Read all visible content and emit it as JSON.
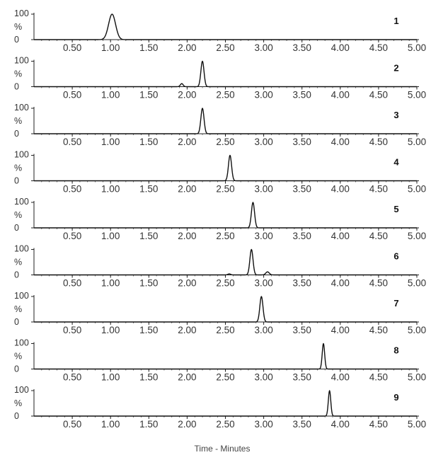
{
  "chart_data": {
    "type": "line",
    "xlabel": "Time - Minutes",
    "xlim": [
      0.0,
      5.0
    ],
    "ylim": [
      0,
      100
    ],
    "y_tick_labels": [
      "100",
      "%",
      "0"
    ],
    "x_ticks": [
      "0.50",
      "1.00",
      "1.50",
      "2.00",
      "2.50",
      "3.00",
      "3.50",
      "4.00",
      "4.50",
      "5.00"
    ],
    "panels": [
      {
        "label": "1",
        "peaks": [
          {
            "rt": 1.02,
            "height": 100,
            "width": 0.1
          }
        ]
      },
      {
        "label": "2",
        "peaks": [
          {
            "rt": 2.2,
            "height": 100,
            "width": 0.045
          },
          {
            "rt": 1.93,
            "height": 12,
            "width": 0.04
          }
        ]
      },
      {
        "label": "3",
        "peaks": [
          {
            "rt": 2.2,
            "height": 100,
            "width": 0.045
          }
        ]
      },
      {
        "label": "4",
        "peaks": [
          {
            "rt": 2.56,
            "height": 100,
            "width": 0.045
          }
        ]
      },
      {
        "label": "5",
        "peaks": [
          {
            "rt": 2.86,
            "height": 100,
            "width": 0.045
          }
        ]
      },
      {
        "label": "6",
        "peaks": [
          {
            "rt": 2.84,
            "height": 100,
            "width": 0.045
          },
          {
            "rt": 3.05,
            "height": 12,
            "width": 0.05
          },
          {
            "rt": 2.55,
            "height": 4,
            "width": 0.04
          }
        ]
      },
      {
        "label": "7",
        "peaks": [
          {
            "rt": 2.97,
            "height": 100,
            "width": 0.045
          }
        ]
      },
      {
        "label": "8",
        "peaks": [
          {
            "rt": 3.78,
            "height": 100,
            "width": 0.035
          }
        ]
      },
      {
        "label": "9",
        "peaks": [
          {
            "rt": 3.86,
            "height": 100,
            "width": 0.035
          }
        ]
      }
    ]
  }
}
